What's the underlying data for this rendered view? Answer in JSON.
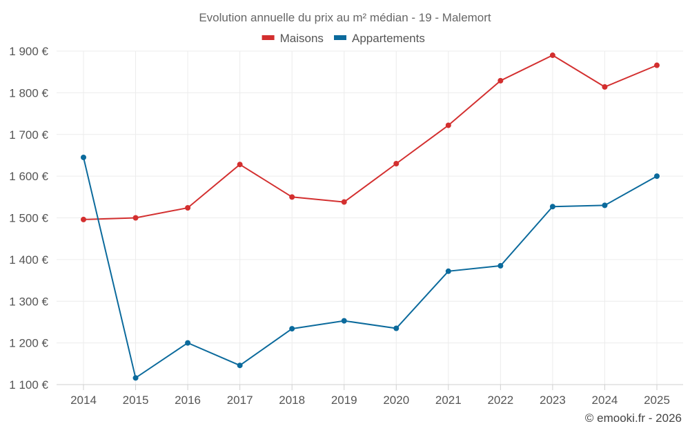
{
  "chart_data": {
    "type": "line",
    "title": "Evolution annuelle du prix au m² médian - 19 - Malemort",
    "categories": [
      "2014",
      "2015",
      "2016",
      "2017",
      "2018",
      "2019",
      "2020",
      "2021",
      "2022",
      "2023",
      "2024",
      "2025"
    ],
    "series": [
      {
        "name": "Maisons",
        "color": "#d32f2f",
        "values": [
          1496,
          1500,
          1524,
          1628,
          1550,
          1538,
          1630,
          1722,
          1829,
          1890,
          1814,
          1866
        ]
      },
      {
        "name": "Appartements",
        "color": "#0b6a9c",
        "values": [
          1645,
          1116,
          1200,
          1146,
          1234,
          1253,
          1235,
          1372,
          1385,
          1527,
          1530,
          1600
        ]
      }
    ],
    "ylim": [
      1100,
      1900
    ],
    "yticks": [
      {
        "value": 1900,
        "label": "1 900 €"
      },
      {
        "value": 1800,
        "label": "1 800 €"
      },
      {
        "value": 1700,
        "label": "1 700 €"
      },
      {
        "value": 1600,
        "label": "1 600 €"
      },
      {
        "value": 1500,
        "label": "1 500 €"
      },
      {
        "value": 1400,
        "label": "1 400 €"
      },
      {
        "value": 1300,
        "label": "1 300 €"
      },
      {
        "value": 1200,
        "label": "1 200 €"
      },
      {
        "value": 1100,
        "label": "1 100 €"
      }
    ],
    "legend_position": "top-center",
    "grid": true
  },
  "credit": "© emooki.fr - 2026"
}
